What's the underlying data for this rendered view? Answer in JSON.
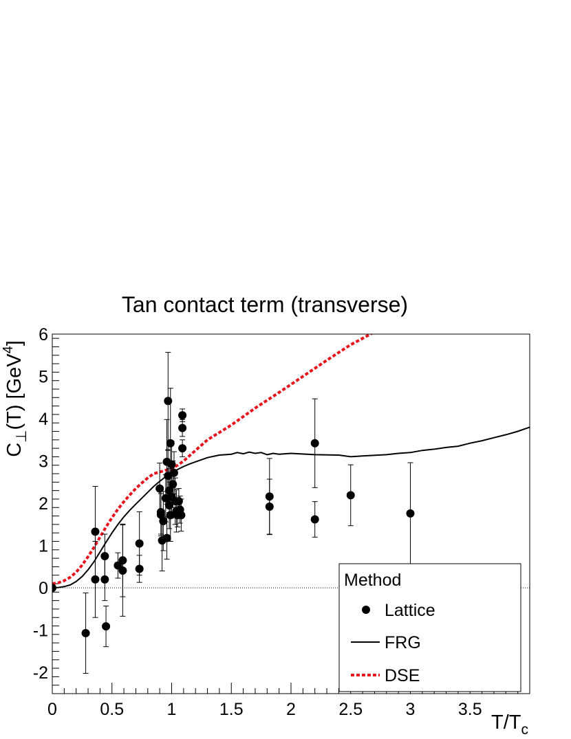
{
  "chart_data": {
    "type": "scatter",
    "title": "Tan contact term (transverse)",
    "xlabel": {
      "main": "T/T",
      "sub": "c"
    },
    "ylabel": {
      "pre": "C",
      "sub": "⊥",
      "mid": "(T) [GeV",
      "sup": "4",
      "post": "]"
    },
    "xlim": [
      0,
      4.0
    ],
    "ylim": [
      -2.5,
      6
    ],
    "x_ticks": [
      0,
      0.5,
      1,
      1.5,
      2,
      2.5,
      3,
      3.5
    ],
    "x_tick_labels": [
      "0",
      "0.5",
      "1",
      "1.5",
      "2",
      "2.5",
      "3",
      "3.5"
    ],
    "y_ticks": [
      -2,
      -1,
      0,
      1,
      2,
      3,
      4,
      5,
      6
    ],
    "y_tick_labels": [
      "-2",
      "-1",
      "0",
      "1",
      "2",
      "3",
      "4",
      "5",
      "6"
    ],
    "zero_line": true,
    "grid": false,
    "legend": {
      "title": "Method",
      "placement": "bottom-right",
      "entries": [
        {
          "label": "Lattice",
          "style": "marker"
        },
        {
          "label": "FRG",
          "style": "solid-line"
        },
        {
          "label": "DSE",
          "style": "dashed-line"
        }
      ]
    },
    "colors": {
      "lattice": "#000000",
      "frg": "#000000",
      "dse": "#e8141c"
    },
    "series": [
      {
        "name": "Lattice",
        "kind": "points-with-errors",
        "points": [
          {
            "x": 0.0,
            "y": 0.0,
            "err": 0.05
          },
          {
            "x": 0.28,
            "y": -1.07,
            "err": 0.95
          },
          {
            "x": 0.36,
            "y": 1.33,
            "err": 1.07
          },
          {
            "x": 0.36,
            "y": 0.2,
            "err": 0.9
          },
          {
            "x": 0.44,
            "y": 0.75,
            "err": 0.52
          },
          {
            "x": 0.44,
            "y": 0.2,
            "err": 0.5
          },
          {
            "x": 0.45,
            "y": -0.91,
            "err": 0.48
          },
          {
            "x": 0.55,
            "y": 0.53,
            "err": 0.3
          },
          {
            "x": 0.59,
            "y": 0.65,
            "err": 0.86
          },
          {
            "x": 0.59,
            "y": 0.41,
            "err": 1.08
          },
          {
            "x": 0.73,
            "y": 1.05,
            "err": 0.75
          },
          {
            "x": 0.73,
            "y": 0.45,
            "err": 0.32
          },
          {
            "x": 0.9,
            "y": 2.35,
            "err": 0.6
          },
          {
            "x": 0.91,
            "y": 1.79,
            "err": 0.52
          },
          {
            "x": 0.91,
            "y": 1.73,
            "err": 0.5
          },
          {
            "x": 0.92,
            "y": 1.12,
            "err": 0.72
          },
          {
            "x": 0.93,
            "y": 1.58,
            "err": 0.7
          },
          {
            "x": 0.95,
            "y": 2.12,
            "err": 0.56
          },
          {
            "x": 0.96,
            "y": 1.18,
            "err": 0.5
          },
          {
            "x": 0.96,
            "y": 2.98,
            "err": 1.0
          },
          {
            "x": 0.97,
            "y": 4.42,
            "err": 1.15
          },
          {
            "x": 0.97,
            "y": 2.65,
            "err": 0.6
          },
          {
            "x": 0.98,
            "y": 2.3,
            "err": 0.52
          },
          {
            "x": 0.98,
            "y": 1.95,
            "err": 0.55
          },
          {
            "x": 0.99,
            "y": 3.42,
            "err": 1.3
          },
          {
            "x": 0.99,
            "y": 1.72,
            "err": 0.62
          },
          {
            "x": 1.0,
            "y": 2.92,
            "err": 0.55
          },
          {
            "x": 1.0,
            "y": 2.15,
            "err": 0.5
          },
          {
            "x": 1.01,
            "y": 2.45,
            "err": 0.55
          },
          {
            "x": 1.02,
            "y": 2.72,
            "err": 0.5
          },
          {
            "x": 1.03,
            "y": 2.05,
            "err": 0.55
          },
          {
            "x": 1.04,
            "y": 1.82,
            "err": 0.5
          },
          {
            "x": 1.05,
            "y": 1.72,
            "err": 0.28
          },
          {
            "x": 1.06,
            "y": 2.05,
            "err": 0.3
          },
          {
            "x": 1.07,
            "y": 1.85,
            "err": 0.32
          },
          {
            "x": 1.08,
            "y": 1.72,
            "err": 0.38
          },
          {
            "x": 1.09,
            "y": 4.08,
            "err": 0.15
          },
          {
            "x": 1.09,
            "y": 3.78,
            "err": 0.2
          },
          {
            "x": 1.09,
            "y": 3.3,
            "err": 0.2
          },
          {
            "x": 1.82,
            "y": 2.16,
            "err": 0.9
          },
          {
            "x": 1.82,
            "y": 1.92,
            "err": 0.65
          },
          {
            "x": 2.2,
            "y": 3.42,
            "err": 1.05
          },
          {
            "x": 2.2,
            "y": 1.62,
            "err": 0.42
          },
          {
            "x": 2.5,
            "y": 2.19,
            "err": 0.72
          },
          {
            "x": 3.0,
            "y": 1.76,
            "err": 1.2
          }
        ]
      },
      {
        "name": "FRG",
        "kind": "line",
        "x": [
          0,
          0.05,
          0.1,
          0.15,
          0.2,
          0.25,
          0.3,
          0.35,
          0.4,
          0.45,
          0.5,
          0.55,
          0.6,
          0.65,
          0.7,
          0.75,
          0.8,
          0.85,
          0.9,
          0.95,
          1.0,
          1.05,
          1.1,
          1.15,
          1.2,
          1.3,
          1.4,
          1.5,
          1.55,
          1.6,
          1.65,
          1.7,
          1.75,
          1.8,
          1.85,
          1.9,
          2.0,
          2.2,
          2.4,
          2.5,
          2.6,
          2.8,
          2.9,
          3.0,
          3.1,
          3.2,
          3.3,
          3.4,
          3.5,
          3.6,
          3.7,
          3.8,
          3.9,
          4.0
        ],
        "y": [
          0,
          0.01,
          0.03,
          0.07,
          0.15,
          0.27,
          0.43,
          0.62,
          0.85,
          1.08,
          1.3,
          1.5,
          1.68,
          1.84,
          1.98,
          2.12,
          2.26,
          2.4,
          2.52,
          2.63,
          2.72,
          2.8,
          2.87,
          2.93,
          2.98,
          3.08,
          3.14,
          3.16,
          3.2,
          3.17,
          3.21,
          3.18,
          3.2,
          3.15,
          3.18,
          3.16,
          3.18,
          3.15,
          3.14,
          3.1,
          3.12,
          3.15,
          3.18,
          3.2,
          3.25,
          3.28,
          3.32,
          3.35,
          3.42,
          3.48,
          3.55,
          3.62,
          3.7,
          3.8
        ]
      },
      {
        "name": "DSE",
        "kind": "line",
        "x": [
          0,
          0.05,
          0.1,
          0.15,
          0.2,
          0.25,
          0.3,
          0.35,
          0.4,
          0.45,
          0.5,
          0.55,
          0.6,
          0.65,
          0.7,
          0.75,
          0.8,
          0.85,
          0.9,
          0.95,
          1.0,
          1.05,
          1.1,
          1.2,
          1.3,
          1.5,
          1.7,
          1.9,
          2.1,
          2.3,
          2.5,
          2.6,
          2.7
        ],
        "y": [
          0.1,
          0.12,
          0.17,
          0.25,
          0.37,
          0.54,
          0.74,
          0.96,
          1.2,
          1.44,
          1.66,
          1.86,
          2.04,
          2.2,
          2.35,
          2.48,
          2.6,
          2.7,
          2.74,
          2.78,
          2.82,
          2.9,
          3.0,
          3.25,
          3.5,
          3.85,
          4.25,
          4.62,
          5.0,
          5.38,
          5.75,
          5.9,
          6.05
        ]
      }
    ]
  }
}
